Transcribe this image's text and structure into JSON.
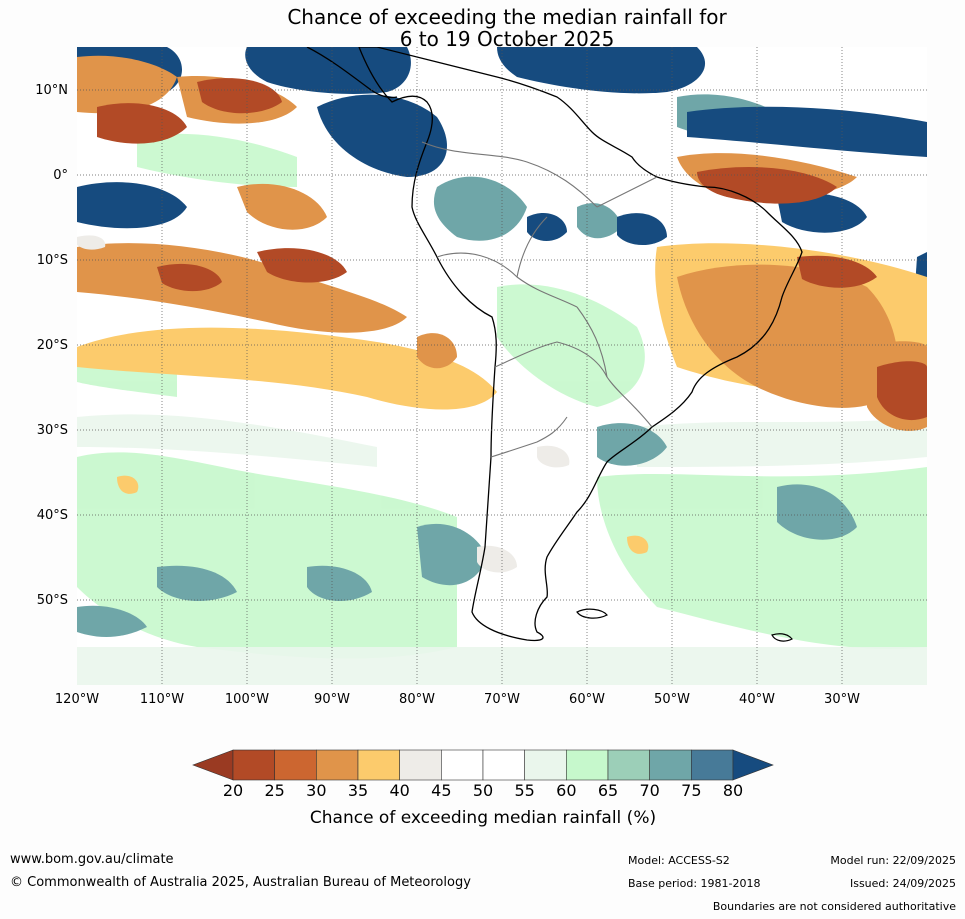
{
  "title": {
    "line1": "Chance of exceeding the median rainfall for",
    "line2": "6 to 19 October 2025"
  },
  "map": {
    "lat_labels": [
      "10°N",
      "0°",
      "10°S",
      "20°S",
      "30°S",
      "40°S",
      "50°S"
    ],
    "lon_labels": [
      "120°W",
      "110°W",
      "100°W",
      "90°W",
      "80°W",
      "70°W",
      "60°W",
      "50°W",
      "40°W",
      "30°W"
    ],
    "lon_range": [
      -120,
      -20
    ],
    "lat_range": [
      -60,
      15
    ]
  },
  "colorbar": {
    "ticks": [
      "20",
      "25",
      "30",
      "35",
      "40",
      "45",
      "50",
      "55",
      "60",
      "65",
      "70",
      "75",
      "80"
    ],
    "bin_colors": [
      "#b24a26",
      "#cc6630",
      "#e0944a",
      "#fccb6c",
      "#eeece8",
      "#ffffff",
      "#ffffff",
      "#eaf6ec",
      "#c6f8cc",
      "#9ccfb8",
      "#6fa6a8",
      "#477a98"
    ],
    "low_extend_color": "#9a3a22",
    "high_extend_color": "#164b7f",
    "label": "Chance of exceeding median rainfall (%)"
  },
  "footer": {
    "url": "www.bom.gov.au/climate",
    "copyright": "© Commonwealth of Australia 2025, Australian Bureau of Meteorology",
    "model": "Model: ACCESS-S2",
    "base_period": "Base period: 1981-2018",
    "model_run": "Model run: 22/09/2025",
    "issued": "Issued: 24/09/2025",
    "disclaimer": "Boundaries are not considered authoritative"
  }
}
